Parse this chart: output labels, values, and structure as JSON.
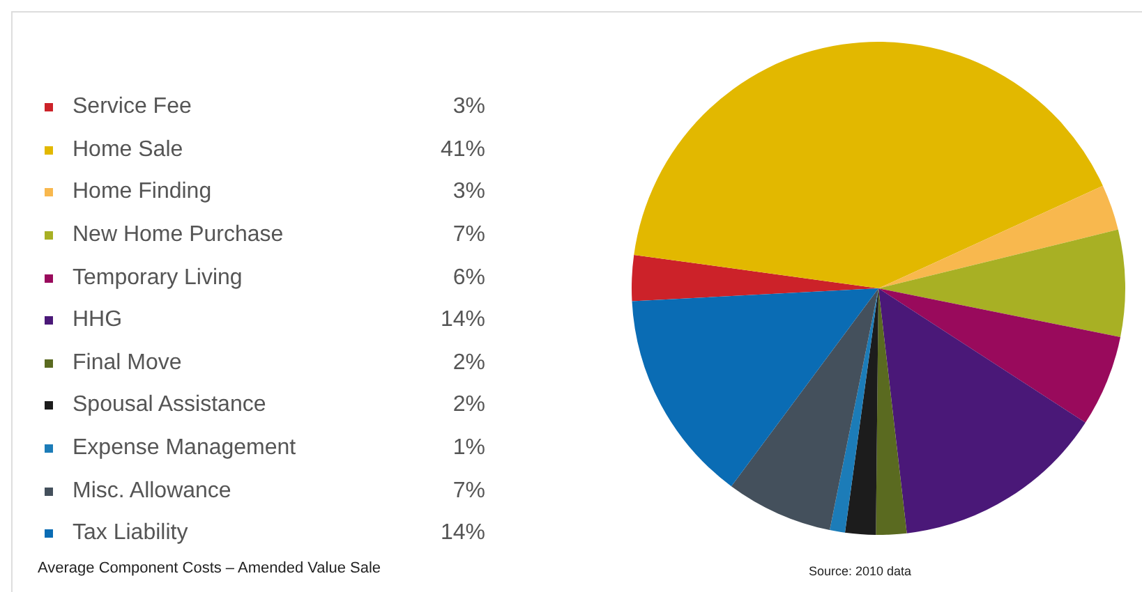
{
  "chart_data": {
    "type": "pie",
    "title": "Average Component Costs – Amended Value Sale",
    "annotations": [
      "Source: 2010 data"
    ],
    "categories": [
      "Service Fee",
      "Home Sale",
      "Home Finding",
      "New Home Purchase",
      "Temporary Living",
      "HHG",
      "Final Move",
      "Spousal Assistance",
      "Expense Management",
      "Misc. Allowance",
      "Tax Liability"
    ],
    "values": [
      3,
      41,
      3,
      7,
      6,
      14,
      2,
      2,
      1,
      7,
      14
    ],
    "value_labels": [
      "3%",
      "41%",
      "3%",
      "7%",
      "6%",
      "14%",
      "2%",
      "2%",
      "1%",
      "7%",
      "14%"
    ],
    "colors": [
      "#cc2229",
      "#e2b800",
      "#f8b84e",
      "#a8b024",
      "#990a5c",
      "#4a1878",
      "#5a6a20",
      "#1c1c1c",
      "#1c7cb8",
      "#44505c",
      "#0a6cb4"
    ],
    "legend": "left"
  }
}
